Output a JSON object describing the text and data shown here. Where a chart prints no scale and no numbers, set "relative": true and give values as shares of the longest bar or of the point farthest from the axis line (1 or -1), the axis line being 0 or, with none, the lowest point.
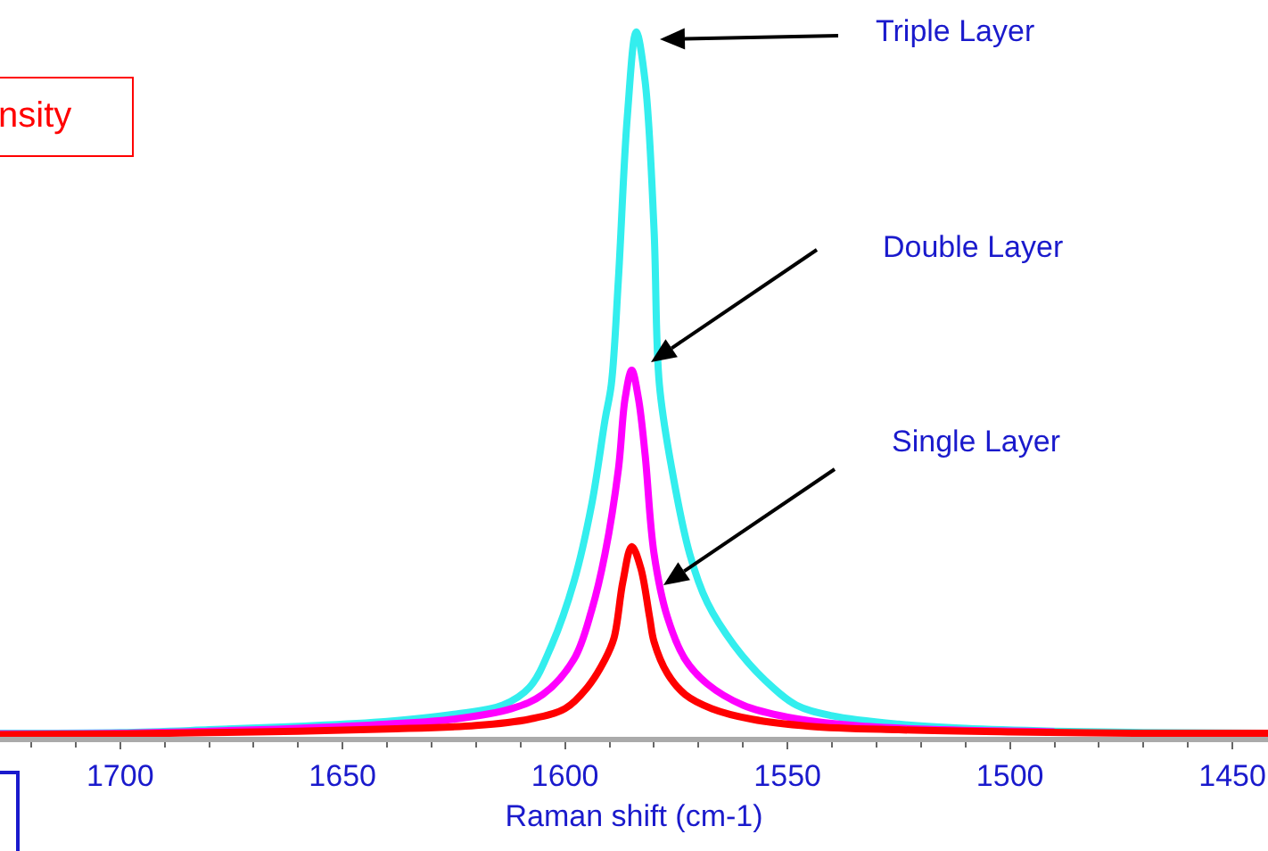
{
  "chart_data": {
    "type": "line",
    "relative": true,
    "xlabel": "Raman shift (cm-1)",
    "xlim": [
      1727,
      1442
    ],
    "xticks": [
      1700,
      1650,
      1600,
      1550,
      1500,
      1450
    ],
    "grid": false,
    "marker": "none",
    "line_style": "solid",
    "series": [
      {
        "color": "#33eeee",
        "x": [
          1727,
          1700,
          1680,
          1660,
          1640,
          1625,
          1614,
          1608,
          1603,
          1598,
          1594,
          1591,
          1589.6,
          1588,
          1586,
          1584,
          1582,
          1580,
          1578.8,
          1576,
          1572,
          1568,
          1562,
          1555,
          1548,
          1540,
          1525,
          1510,
          1490,
          1470,
          1442
        ],
        "values": [
          0.005,
          0.006,
          0.01,
          0.015,
          0.022,
          0.032,
          0.045,
          0.07,
          0.13,
          0.22,
          0.33,
          0.45,
          0.5,
          0.65,
          0.88,
          1,
          0.93,
          0.72,
          0.5,
          0.38,
          0.26,
          0.19,
          0.13,
          0.08,
          0.045,
          0.03,
          0.018,
          0.012,
          0.008,
          0.006,
          0.005
        ]
      },
      {
        "color": "#ff00ff",
        "x": [
          1727,
          1700,
          1680,
          1660,
          1640,
          1625,
          1612,
          1605,
          1598,
          1594,
          1591,
          1588,
          1586.5,
          1585,
          1583.5,
          1582,
          1580,
          1577,
          1573,
          1568,
          1560,
          1550,
          1535,
          1515,
          1490
        ],
        "values": [
          0.004,
          0.005,
          0.008,
          0.012,
          0.018,
          0.025,
          0.04,
          0.06,
          0.11,
          0.18,
          0.26,
          0.38,
          0.48,
          0.52,
          0.48,
          0.4,
          0.26,
          0.17,
          0.11,
          0.075,
          0.045,
          0.028,
          0.016,
          0.01,
          0.007
        ]
      },
      {
        "color": "#ff0000",
        "x": [
          1727,
          1700,
          1680,
          1660,
          1640,
          1620,
          1608,
          1600,
          1595,
          1591,
          1589,
          1587,
          1585,
          1583,
          1581,
          1580,
          1577,
          1573,
          1567,
          1558,
          1545,
          1525,
          1500,
          1470,
          1442
        ],
        "values": [
          0.003,
          0.004,
          0.006,
          0.008,
          0.011,
          0.016,
          0.025,
          0.04,
          0.07,
          0.11,
          0.14,
          0.22,
          0.27,
          0.24,
          0.17,
          0.135,
          0.09,
          0.06,
          0.04,
          0.025,
          0.015,
          0.01,
          0.007,
          0.005,
          0.005
        ]
      }
    ],
    "annotations": [
      "Triple Layer",
      "Double Layer",
      "Single Layer",
      "nsity"
    ]
  }
}
